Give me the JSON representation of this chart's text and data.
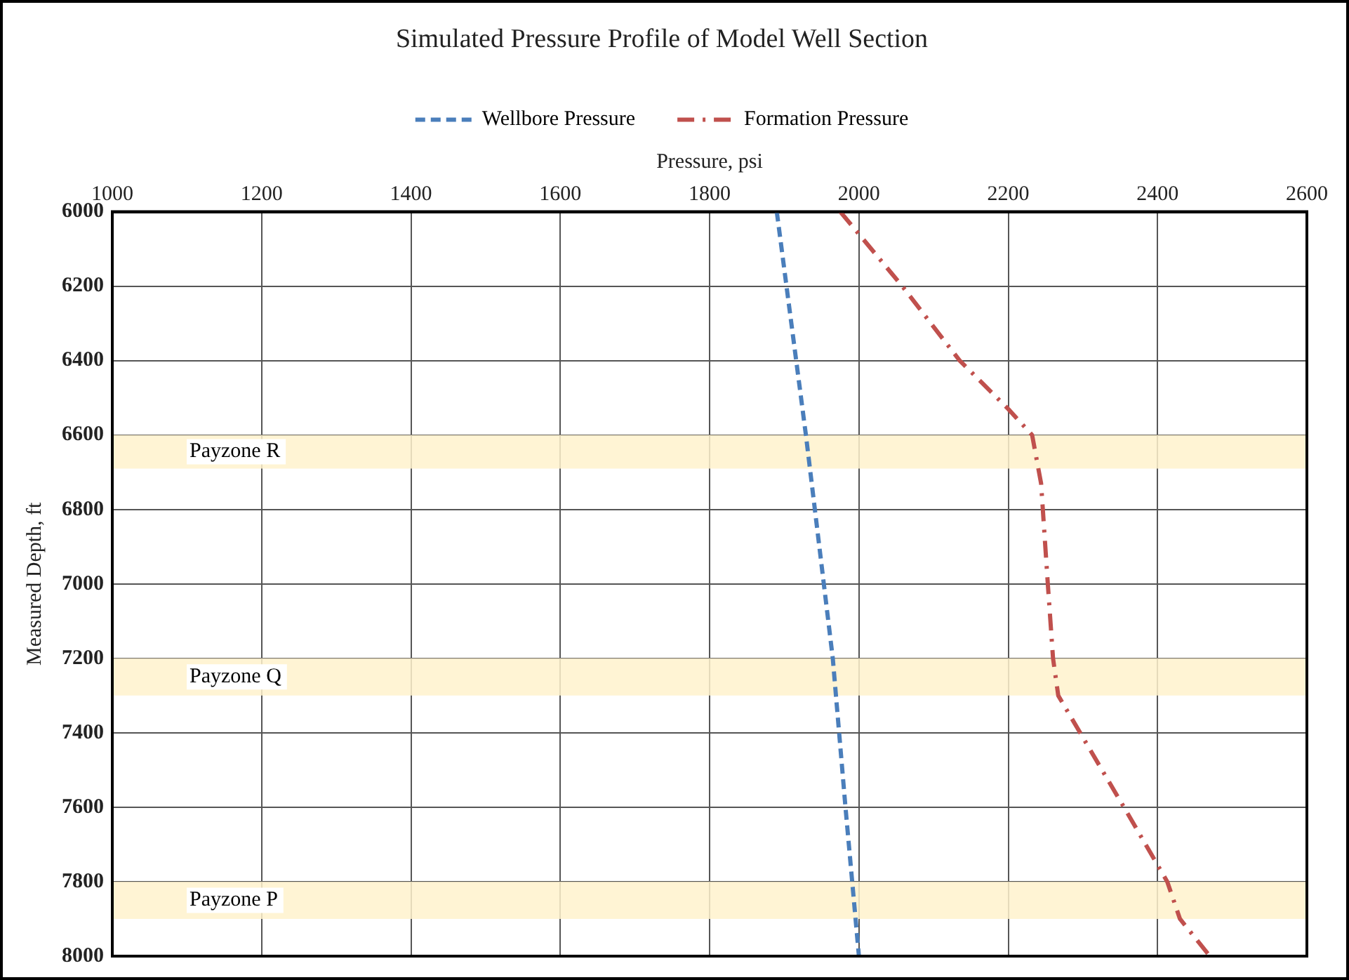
{
  "chart_data": {
    "type": "line",
    "title": "Simulated Pressure Profile of Model Well Section",
    "xlabel": "Pressure, psi",
    "ylabel": "Measured Depth, ft",
    "series": [
      {
        "name": "Wellbore Pressure",
        "color": "#4a7ebb",
        "line_style": "dashed",
        "x": [
          1890,
          1929,
          1953,
          1965,
          1982,
          2000
        ],
        "values": [
          6000,
          6600,
          7000,
          7200,
          7600,
          8000
        ]
      },
      {
        "name": "Formation Pressure",
        "color": "#c0504d",
        "line_style": "dashdot",
        "x": [
          1975,
          2000,
          2058,
          2135,
          2200,
          2232,
          2244,
          2253,
          2260,
          2267,
          2355,
          2413,
          2430,
          2470
        ],
        "values": [
          6000,
          6060,
          6200,
          6400,
          6530,
          6600,
          6730,
          7000,
          7200,
          7300,
          7600,
          7800,
          7900,
          8000
        ]
      }
    ],
    "xlim": [
      1000,
      2600
    ],
    "xticks": [
      1000,
      1200,
      1400,
      1600,
      1800,
      2000,
      2200,
      2400,
      2600
    ],
    "ylim": [
      8000,
      6000
    ],
    "yticks": [
      6000,
      6200,
      6400,
      6600,
      6800,
      7000,
      7200,
      7400,
      7600,
      7800,
      8000
    ],
    "bands": [
      {
        "axis": "y",
        "from": 6600,
        "to": 6690,
        "label": "Payzone R",
        "color": "#fff2cc"
      },
      {
        "axis": "y",
        "from": 7200,
        "to": 7300,
        "label": "Payzone Q",
        "color": "#fff2cc"
      },
      {
        "axis": "y",
        "from": 7800,
        "to": 7900,
        "label": "Payzone P",
        "color": "#fff2cc"
      }
    ],
    "grid": true,
    "legend": "top",
    "marker": "none"
  }
}
